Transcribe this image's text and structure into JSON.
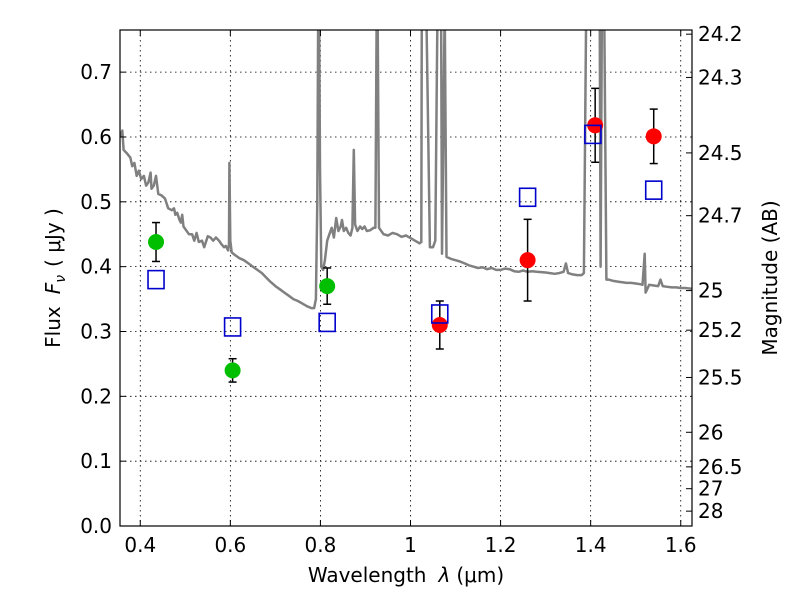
{
  "chart_data": {
    "type": "scatter",
    "xlabel_text": "Wavelength",
    "xlabel_symbol": "λ",
    "xlabel_unit": "(μm)",
    "ylabel_text": "Flux",
    "ylabel_symbol": "F",
    "ylabel_subscript": "ν",
    "ylabel_unit": "( μJy )",
    "y2label": "Magnitude (AB)",
    "xlim": [
      0.355,
      1.625
    ],
    "ylim": [
      0.0,
      0.765
    ],
    "grid": true,
    "x_ticks": [
      {
        "value": 0.4,
        "label": "0.4"
      },
      {
        "value": 0.6,
        "label": "0.6"
      },
      {
        "value": 0.8,
        "label": "0.8"
      },
      {
        "value": 1.0,
        "label": "1"
      },
      {
        "value": 1.2,
        "label": "1.2"
      },
      {
        "value": 1.4,
        "label": "1.4"
      },
      {
        "value": 1.6,
        "label": "1.6"
      }
    ],
    "y_ticks": [
      {
        "value": 0.0,
        "label": "0.0"
      },
      {
        "value": 0.1,
        "label": "0.1"
      },
      {
        "value": 0.2,
        "label": "0.2"
      },
      {
        "value": 0.3,
        "label": "0.3"
      },
      {
        "value": 0.4,
        "label": "0.4"
      },
      {
        "value": 0.5,
        "label": "0.5"
      },
      {
        "value": 0.6,
        "label": "0.6"
      },
      {
        "value": 0.7,
        "label": "0.7"
      }
    ],
    "y2_ticks": [
      {
        "mag": 24.2,
        "label": "24.2"
      },
      {
        "mag": 24.3,
        "label": "24.3"
      },
      {
        "mag": 24.5,
        "label": "24.5"
      },
      {
        "mag": 24.7,
        "label": "24.7"
      },
      {
        "mag": 25.0,
        "label": "25"
      },
      {
        "mag": 25.2,
        "label": "25.2"
      },
      {
        "mag": 25.5,
        "label": "25.5"
      },
      {
        "mag": 26.0,
        "label": "26"
      },
      {
        "mag": 26.5,
        "label": "26.5"
      },
      {
        "mag": 27.0,
        "label": "27"
      },
      {
        "mag": 28.0,
        "label": "28"
      }
    ],
    "spectrum": {
      "color": "#808080",
      "points": [
        [
          0.355,
          0.6
        ],
        [
          0.36,
          0.61
        ],
        [
          0.363,
          0.58
        ],
        [
          0.37,
          0.575
        ],
        [
          0.378,
          0.568
        ],
        [
          0.382,
          0.555
        ],
        [
          0.387,
          0.56
        ],
        [
          0.392,
          0.54
        ],
        [
          0.397,
          0.548
        ],
        [
          0.402,
          0.535
        ],
        [
          0.408,
          0.54
        ],
        [
          0.413,
          0.525
        ],
        [
          0.418,
          0.53
        ],
        [
          0.423,
          0.545
        ],
        [
          0.425,
          0.52
        ],
        [
          0.43,
          0.525
        ],
        [
          0.435,
          0.54
        ],
        [
          0.44,
          0.512
        ],
        [
          0.447,
          0.51
        ],
        [
          0.455,
          0.505
        ],
        [
          0.462,
          0.49
        ],
        [
          0.47,
          0.487
        ],
        [
          0.475,
          0.49
        ],
        [
          0.478,
          0.48
        ],
        [
          0.482,
          0.483
        ],
        [
          0.487,
          0.472
        ],
        [
          0.49,
          0.468
        ],
        [
          0.493,
          0.48
        ],
        [
          0.496,
          0.462
        ],
        [
          0.502,
          0.456
        ],
        [
          0.508,
          0.45
        ],
        [
          0.515,
          0.45
        ],
        [
          0.52,
          0.44
        ],
        [
          0.525,
          0.452
        ],
        [
          0.53,
          0.438
        ],
        [
          0.537,
          0.44
        ],
        [
          0.542,
          0.43
        ],
        [
          0.55,
          0.447
        ],
        [
          0.556,
          0.445
        ],
        [
          0.562,
          0.44
        ],
        [
          0.568,
          0.445
        ],
        [
          0.575,
          0.44
        ],
        [
          0.58,
          0.435
        ],
        [
          0.586,
          0.43
        ],
        [
          0.59,
          0.432
        ],
        [
          0.595,
          0.425
        ],
        [
          0.597,
          0.435
        ],
        [
          0.598,
          0.56
        ],
        [
          0.6,
          0.44
        ],
        [
          0.603,
          0.422
        ],
        [
          0.61,
          0.418
        ],
        [
          0.62,
          0.413
        ],
        [
          0.63,
          0.41
        ],
        [
          0.64,
          0.405
        ],
        [
          0.65,
          0.4
        ],
        [
          0.66,
          0.395
        ],
        [
          0.67,
          0.39
        ],
        [
          0.68,
          0.383
        ],
        [
          0.69,
          0.376
        ],
        [
          0.7,
          0.37
        ],
        [
          0.71,
          0.365
        ],
        [
          0.72,
          0.36
        ],
        [
          0.73,
          0.355
        ],
        [
          0.74,
          0.35
        ],
        [
          0.75,
          0.347
        ],
        [
          0.76,
          0.343
        ],
        [
          0.77,
          0.339
        ],
        [
          0.78,
          0.336
        ],
        [
          0.786,
          0.336
        ],
        [
          0.79,
          0.35
        ],
        [
          0.793,
          0.5
        ],
        [
          0.795,
          0.8
        ],
        [
          0.797,
          0.8
        ],
        [
          0.799,
          0.55
        ],
        [
          0.802,
          0.4
        ],
        [
          0.806,
          0.395
        ],
        [
          0.81,
          0.41
        ],
        [
          0.815,
          0.44
        ],
        [
          0.82,
          0.45
        ],
        [
          0.825,
          0.46
        ],
        [
          0.83,
          0.445
        ],
        [
          0.835,
          0.475
        ],
        [
          0.84,
          0.455
        ],
        [
          0.845,
          0.462
        ],
        [
          0.848,
          0.472
        ],
        [
          0.852,
          0.455
        ],
        [
          0.857,
          0.46
        ],
        [
          0.862,
          0.452
        ],
        [
          0.867,
          0.448
        ],
        [
          0.871,
          0.46
        ],
        [
          0.874,
          0.58
        ],
        [
          0.877,
          0.465
        ],
        [
          0.882,
          0.455
        ],
        [
          0.888,
          0.462
        ],
        [
          0.893,
          0.458
        ],
        [
          0.898,
          0.462
        ],
        [
          0.903,
          0.455
        ],
        [
          0.91,
          0.456
        ],
        [
          0.918,
          0.46
        ],
        [
          0.922,
          0.46
        ],
        [
          0.925,
          0.8
        ],
        [
          0.927,
          0.8
        ],
        [
          0.93,
          0.46
        ],
        [
          0.94,
          0.45
        ],
        [
          0.95,
          0.448
        ],
        [
          0.96,
          0.452
        ],
        [
          0.97,
          0.45
        ],
        [
          0.98,
          0.446
        ],
        [
          0.99,
          0.448
        ],
        [
          1.0,
          0.444
        ],
        [
          1.01,
          0.44
        ],
        [
          1.02,
          0.436
        ],
        [
          1.024,
          0.438
        ],
        [
          1.025,
          0.8
        ],
        [
          1.035,
          0.8
        ],
        [
          1.043,
          0.43
        ],
        [
          1.05,
          0.43
        ],
        [
          1.055,
          0.44
        ],
        [
          1.06,
          0.8
        ],
        [
          1.068,
          0.8
        ],
        [
          1.07,
          0.42
        ],
        [
          1.076,
          0.8
        ],
        [
          1.08,
          0.415
        ],
        [
          1.09,
          0.412
        ],
        [
          1.1,
          0.41
        ],
        [
          1.11,
          0.408
        ],
        [
          1.12,
          0.405
        ],
        [
          1.13,
          0.402
        ],
        [
          1.14,
          0.4
        ],
        [
          1.15,
          0.398
        ],
        [
          1.16,
          0.399
        ],
        [
          1.17,
          0.396
        ],
        [
          1.18,
          0.398
        ],
        [
          1.19,
          0.395
        ],
        [
          1.2,
          0.395
        ],
        [
          1.21,
          0.397
        ],
        [
          1.22,
          0.396
        ],
        [
          1.23,
          0.393
        ],
        [
          1.24,
          0.392
        ],
        [
          1.25,
          0.394
        ],
        [
          1.26,
          0.392
        ],
        [
          1.27,
          0.393
        ],
        [
          1.28,
          0.392
        ],
        [
          1.3,
          0.391
        ],
        [
          1.31,
          0.39
        ],
        [
          1.32,
          0.389
        ],
        [
          1.33,
          0.39
        ],
        [
          1.34,
          0.392
        ],
        [
          1.345,
          0.405
        ],
        [
          1.35,
          0.39
        ],
        [
          1.36,
          0.388
        ],
        [
          1.37,
          0.387
        ],
        [
          1.38,
          0.387
        ],
        [
          1.385,
          0.39
        ],
        [
          1.39,
          0.8
        ],
        [
          1.415,
          0.8
        ],
        [
          1.42,
          0.8
        ],
        [
          1.422,
          0.4
        ],
        [
          1.425,
          0.8
        ],
        [
          1.43,
          0.8
        ],
        [
          1.435,
          0.38
        ],
        [
          1.44,
          0.38
        ],
        [
          1.45,
          0.378
        ],
        [
          1.46,
          0.377
        ],
        [
          1.47,
          0.376
        ],
        [
          1.48,
          0.375
        ],
        [
          1.49,
          0.375
        ],
        [
          1.5,
          0.374
        ],
        [
          1.51,
          0.373
        ],
        [
          1.515,
          0.372
        ],
        [
          1.52,
          0.42
        ],
        [
          1.522,
          0.36
        ],
        [
          1.53,
          0.372
        ],
        [
          1.54,
          0.371
        ],
        [
          1.55,
          0.37
        ],
        [
          1.555,
          0.38
        ],
        [
          1.56,
          0.37
        ],
        [
          1.57,
          0.369
        ],
        [
          1.58,
          0.368
        ],
        [
          1.59,
          0.368
        ],
        [
          1.6,
          0.367
        ],
        [
          1.61,
          0.367
        ],
        [
          1.625,
          0.366
        ]
      ]
    },
    "series": [
      {
        "marker": "circle",
        "color": "#00bf00",
        "points": [
          {
            "x": 0.435,
            "y": 0.438,
            "yerr": 0.03
          },
          {
            "x": 0.605,
            "y": 0.24,
            "yerr": 0.018
          },
          {
            "x": 0.815,
            "y": 0.37,
            "yerr": 0.028
          }
        ]
      },
      {
        "marker": "circle",
        "color": "#ff0000",
        "points": [
          {
            "x": 1.065,
            "y": 0.31,
            "yerr": 0.037
          },
          {
            "x": 1.26,
            "y": 0.41,
            "yerr": 0.063
          },
          {
            "x": 1.41,
            "y": 0.618,
            "yerr": 0.057
          },
          {
            "x": 1.54,
            "y": 0.601,
            "yerr": 0.042
          }
        ]
      },
      {
        "marker": "open-square",
        "color": "#0000cc",
        "points": [
          {
            "x": 0.435,
            "y": 0.38
          },
          {
            "x": 0.605,
            "y": 0.307
          },
          {
            "x": 0.815,
            "y": 0.314
          },
          {
            "x": 1.065,
            "y": 0.327
          },
          {
            "x": 1.26,
            "y": 0.507
          },
          {
            "x": 1.405,
            "y": 0.604
          },
          {
            "x": 1.54,
            "y": 0.518
          }
        ]
      }
    ]
  }
}
